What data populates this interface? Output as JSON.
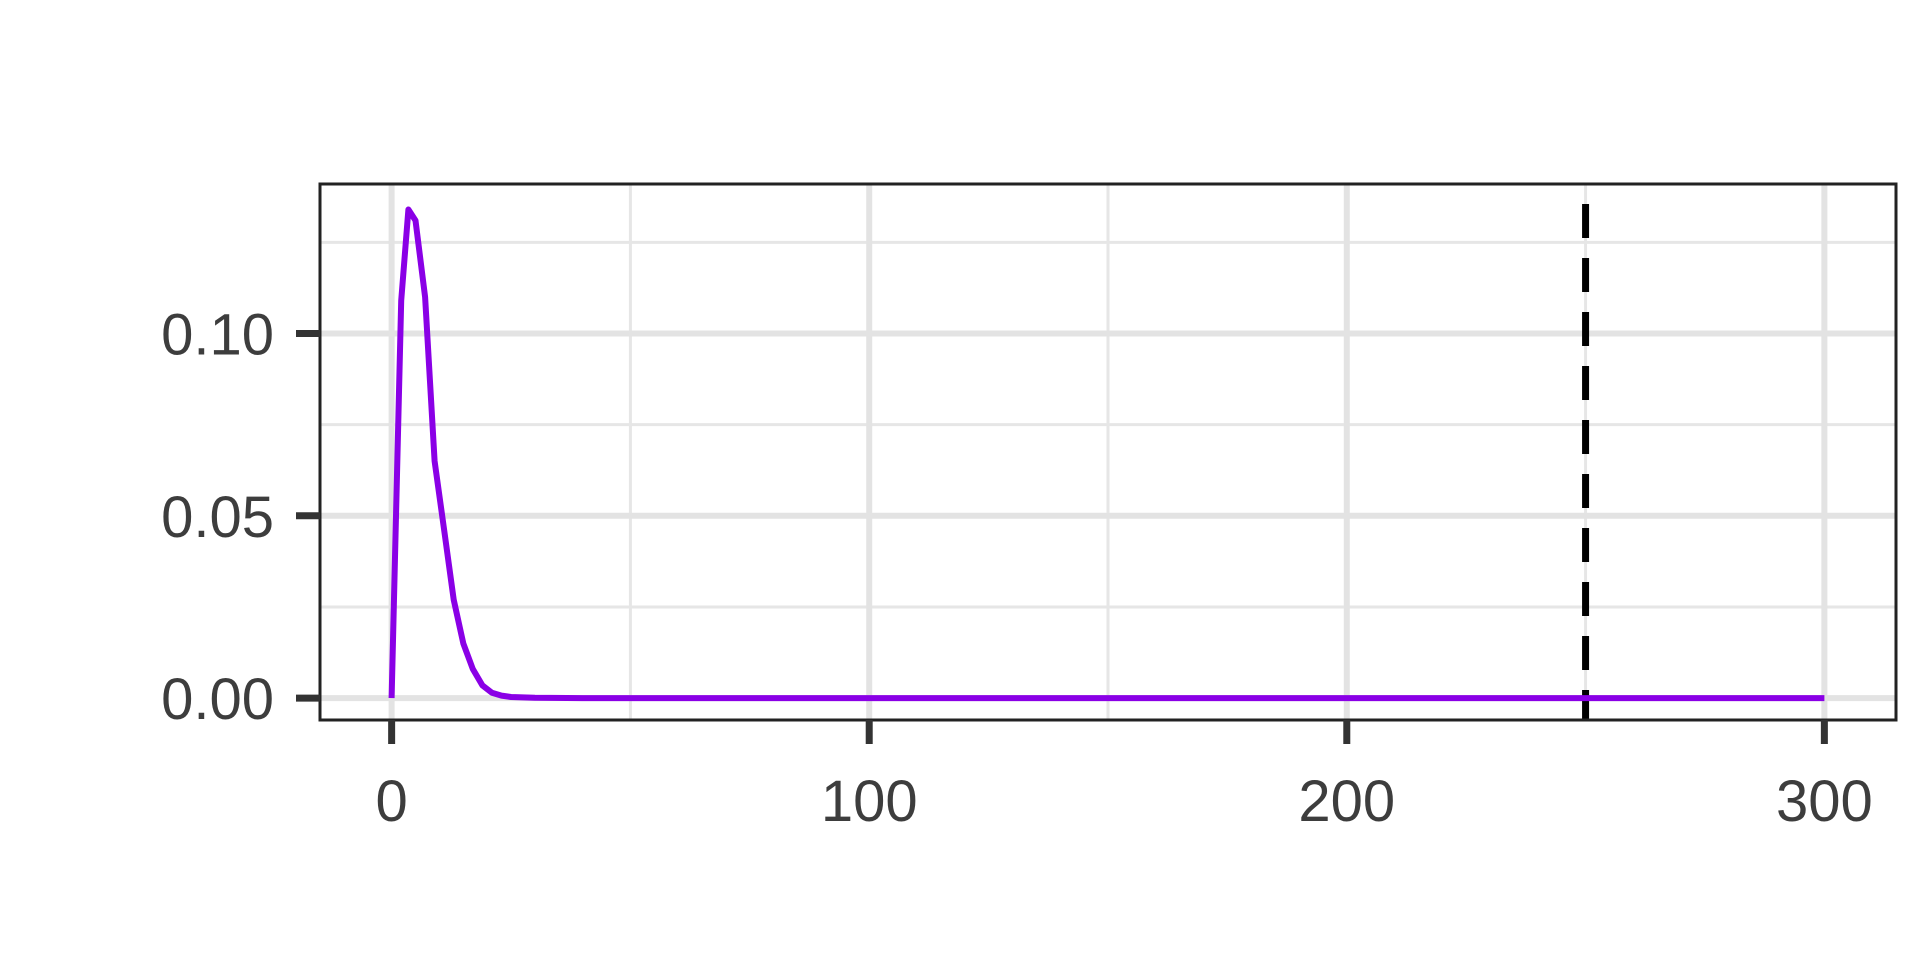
{
  "chart_data": {
    "type": "line",
    "title": "",
    "xlabel": "",
    "ylabel": "",
    "xlim": [
      -15,
      315
    ],
    "ylim": [
      -0.006,
      0.141
    ],
    "x_ticks": [
      0,
      100,
      200,
      300
    ],
    "x_tick_labels": [
      "0",
      "100",
      "200",
      "300"
    ],
    "x_minor_gridlines": [
      50,
      150,
      250
    ],
    "y_ticks": [
      0.0,
      0.05,
      0.1
    ],
    "y_tick_labels": [
      "0.00",
      "0.05",
      "0.10"
    ],
    "y_minor_gridlines": [
      0.025,
      0.075,
      0.125
    ],
    "grid": true,
    "series": [
      {
        "color": "#8a00e6",
        "x": [
          0,
          2,
          3.5,
          5,
          7,
          9,
          11,
          13,
          15,
          17,
          19,
          21,
          23,
          25,
          30,
          40,
          60,
          100,
          150,
          200,
          250,
          300
        ],
        "y": [
          0.0,
          0.109,
          0.134,
          0.131,
          0.11,
          0.065,
          0.046,
          0.027,
          0.015,
          0.008,
          0.0035,
          0.0015,
          0.0007,
          0.0003,
          0.0001,
          0.0,
          0.0,
          0.0,
          0.0,
          0.0,
          0.0,
          0.0
        ]
      }
    ],
    "reference_lines": [
      {
        "orientation": "vertical",
        "x": 250,
        "style": "dashed",
        "color": "#000000"
      }
    ],
    "legend": "none"
  }
}
